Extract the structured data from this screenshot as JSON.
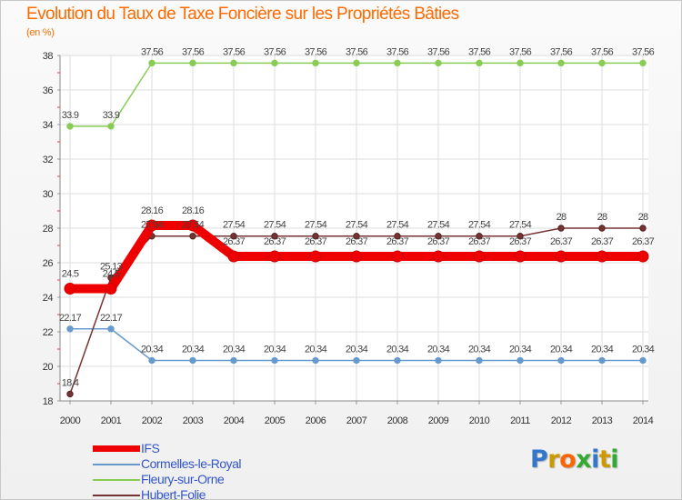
{
  "header": {
    "title": "Evolution du Taux de Taxe Foncière sur les Propriétés Bâties",
    "subtitle": "(en %)"
  },
  "chart_data": {
    "type": "line",
    "title": "Evolution du Taux de Taxe Foncière sur les Propriétés Bâties",
    "ylabel": "(en %)",
    "xlabel": "",
    "x": [
      2000,
      2001,
      2002,
      2003,
      2004,
      2005,
      2006,
      2007,
      2008,
      2009,
      2010,
      2011,
      2012,
      2013,
      2014
    ],
    "ylim": [
      18,
      38
    ],
    "yticks": [
      18,
      20,
      22,
      24,
      26,
      28,
      30,
      32,
      34,
      36,
      38
    ],
    "grid": true,
    "legend_position": "bottom-left",
    "series": [
      {
        "name": "IFS",
        "color": "#ee0000",
        "values": [
          24.5,
          24.5,
          28.16,
          28.16,
          26.37,
          26.37,
          26.37,
          26.37,
          26.37,
          26.37,
          26.37,
          26.37,
          26.37,
          26.37,
          26.37
        ]
      },
      {
        "name": "Cormelles-le-Royal",
        "color": "#6699cc",
        "values": [
          22.17,
          22.17,
          20.34,
          20.34,
          20.34,
          20.34,
          20.34,
          20.34,
          20.34,
          20.34,
          20.34,
          20.34,
          20.34,
          20.34,
          20.34
        ]
      },
      {
        "name": "Fleury-sur-Orne",
        "color": "#88cc55",
        "values": [
          33.9,
          33.9,
          37.56,
          37.56,
          37.56,
          37.56,
          37.56,
          37.56,
          37.56,
          37.56,
          37.56,
          37.56,
          37.56,
          37.56,
          37.56
        ]
      },
      {
        "name": "Hubert-Folie",
        "color": "#773333",
        "values": [
          18.4,
          25.13,
          27.54,
          27.54,
          27.54,
          27.54,
          27.54,
          27.54,
          27.54,
          27.54,
          27.54,
          27.54,
          28,
          28,
          28
        ]
      }
    ]
  },
  "logo": {
    "letters": [
      "P",
      "r",
      "o",
      "x",
      "i",
      "t",
      "i"
    ],
    "colors": [
      "#3377cc",
      "#cc9900",
      "#ff6600",
      "#33aa33",
      "#3377cc",
      "#cc9900",
      "#33aa33"
    ]
  }
}
